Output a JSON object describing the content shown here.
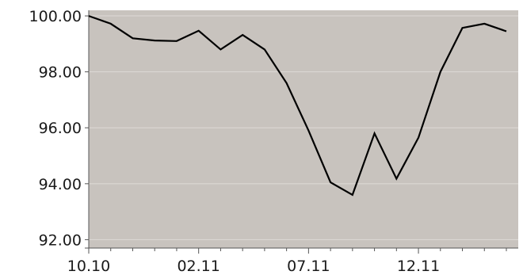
{
  "chart_data": {
    "type": "line",
    "x": [
      "10.10",
      "",
      "",
      "",
      "",
      "02.11",
      "",
      "",
      "",
      "",
      "07.11",
      "",
      "",
      "",
      "",
      "12.11",
      "",
      "",
      "",
      ""
    ],
    "x_tick_labels": [
      "10.10",
      "02.11",
      "07.11",
      "12.11"
    ],
    "x_tick_indices": [
      0,
      5,
      10,
      15
    ],
    "series": [
      {
        "values": [
          100.0,
          99.72,
          99.2,
          99.12,
          99.1,
          99.47,
          98.8,
          99.32,
          98.8,
          97.6,
          95.9,
          94.05,
          93.6,
          95.8,
          94.18,
          95.65,
          98.0,
          99.57,
          99.72,
          99.45
        ]
      }
    ],
    "y_ticks": [
      "92.00",
      "94.00",
      "96.00",
      "98.00",
      "100.00"
    ],
    "y_tick_values": [
      92,
      94,
      96,
      98,
      100
    ],
    "ylim": [
      91.7,
      100.2
    ],
    "grid": "horizontal",
    "title": "",
    "xlabel": "",
    "ylabel": "",
    "colors": {
      "plot_background": "#c8c3be",
      "line": "#000000",
      "gridline": "#dedad6",
      "axis": "#555555"
    }
  }
}
